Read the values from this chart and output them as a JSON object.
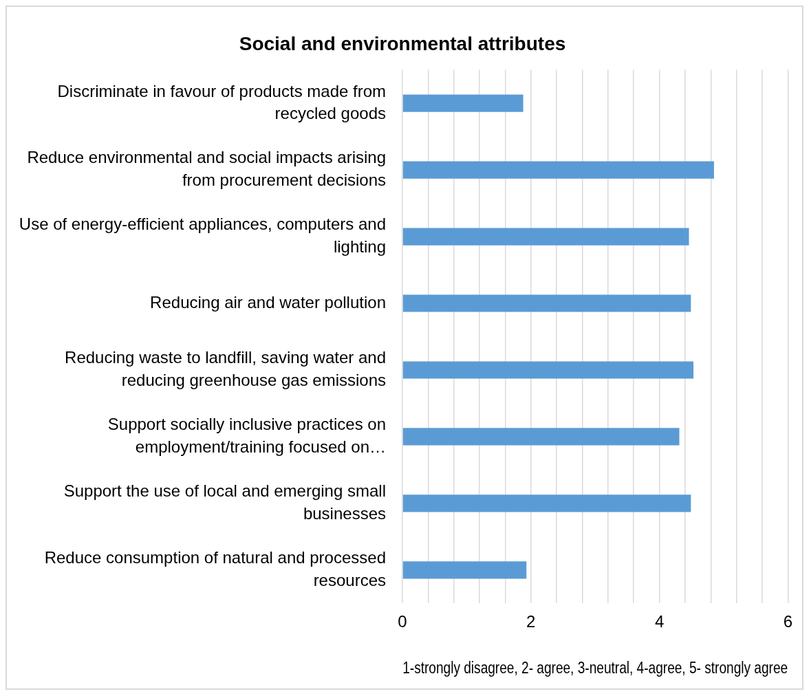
{
  "chart_data": {
    "type": "bar",
    "orientation": "horizontal",
    "title": "Social and environmental attributes",
    "xlabel": "1-strongly disagree, 2- agree, 3-neutral, 4-agree, 5- strongly agree",
    "categories": [
      "Discriminate in favour of products made from recycled goods",
      "Reduce environmental and social impacts arising from procurement decisions",
      "Use of energy-efficient appliances, computers and lighting",
      "Reducing air and water pollution",
      "Reducing waste to landfill, saving water and reducing greenhouse gas emissions",
      "Support socially inclusive practices on employment/training focused on…",
      "Support the use of local and emerging small businesses",
      "Reduce consumption of natural and processed resources"
    ],
    "values": [
      1.88,
      4.85,
      4.46,
      4.49,
      4.53,
      4.31,
      4.49,
      1.93
    ],
    "color": "#5b9bd5",
    "xlim": [
      0,
      6
    ],
    "xticks": [
      0,
      {
        "value": 0.4,
        "label": null
      },
      {
        "value": 0.8,
        "label": null
      },
      {
        "value": 1.2,
        "label": null
      },
      {
        "value": 1.6,
        "label": null
      },
      2,
      {
        "value": 2.4,
        "label": null
      },
      {
        "value": 2.8,
        "label": null
      },
      {
        "value": 3.2,
        "label": null
      },
      {
        "value": 3.6,
        "label": null
      },
      4,
      {
        "value": 4.4,
        "label": null
      },
      {
        "value": 4.8,
        "label": null
      },
      {
        "value": 5.2,
        "label": null
      },
      {
        "value": 5.6,
        "label": null
      },
      6
    ],
    "grid": "x",
    "legend": false
  }
}
